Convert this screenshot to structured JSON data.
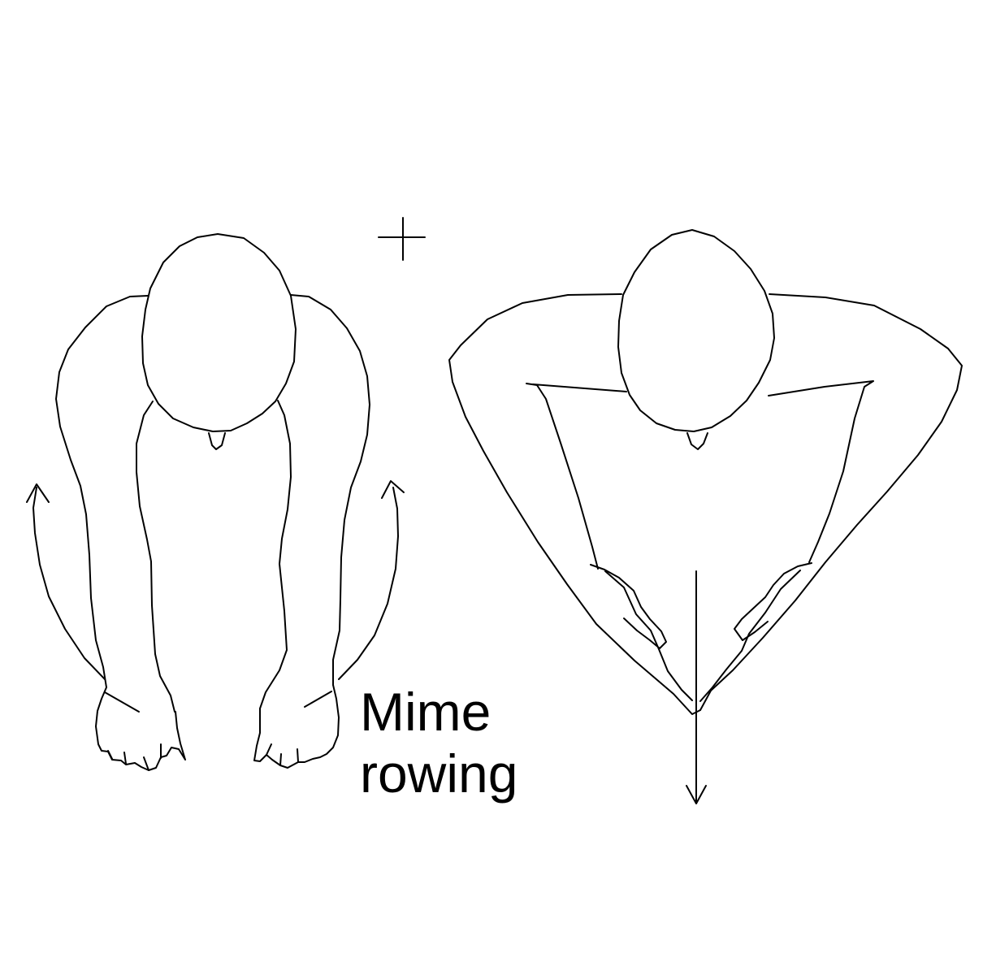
{
  "caption": {
    "line1": "Mime",
    "line2": "rowing"
  },
  "colors": {
    "background": "#ffffff",
    "ink": "#000000"
  },
  "icons": [
    "plus-sign-icon",
    "curved-arrow-up-icon",
    "down-arrow-icon"
  ]
}
